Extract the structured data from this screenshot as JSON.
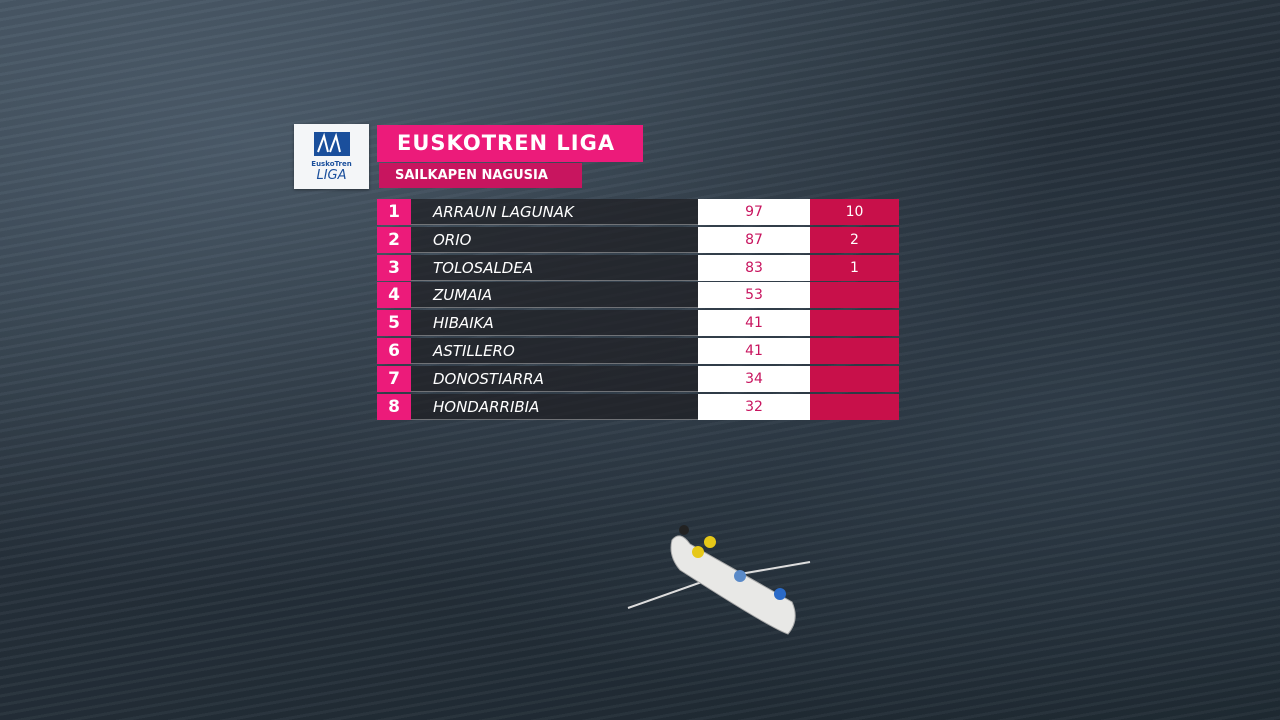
{
  "logo": {
    "line1": "EuskoTren",
    "line2": "LIGA"
  },
  "header": {
    "title": "EUSKOTREN LIGA",
    "subtitle": "SAILKAPEN NAGUSIA"
  },
  "table": {
    "rows": [
      [
        1,
        "ARRAUN LAGUNAK",
        97,
        10
      ],
      [
        2,
        "ORIO",
        87,
        2
      ],
      [
        3,
        "TOLOSALDEA",
        83,
        1
      ],
      [
        4,
        "ZUMAIA",
        53,
        null
      ],
      [
        5,
        "HIBAIKA",
        41,
        null
      ],
      [
        6,
        "ASTILLERO",
        41,
        null
      ],
      [
        7,
        "DONOSTIARRA",
        34,
        null
      ],
      [
        8,
        "HONDARRIBIA",
        32,
        null
      ]
    ]
  }
}
